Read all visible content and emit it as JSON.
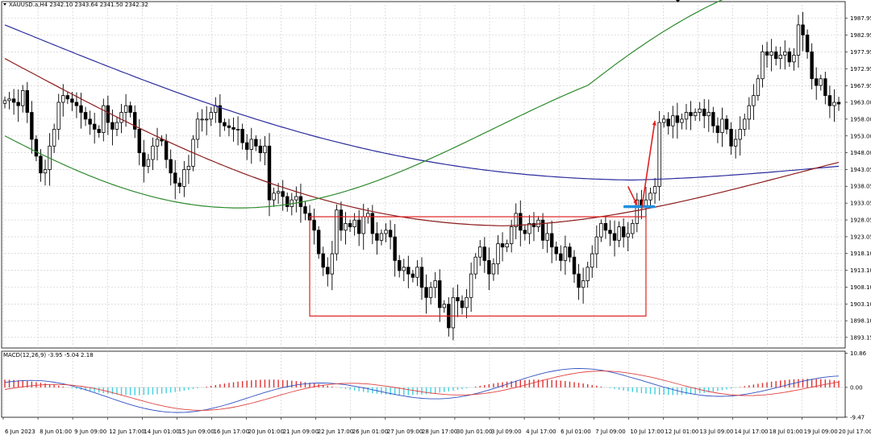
{
  "header": {
    "main_label": "XAUUSD.a,H4  2342.10 2343.64 2341.50 2342.32",
    "macd_label": "MACD(12,26,9) -3.95 -5.04 2.18"
  },
  "colors": {
    "candle": "#000000",
    "grid": "#c8c8c8",
    "ma_blue": "#2b2b9e",
    "ma_darkred": "#8b1a1a",
    "ma_green": "#2e8b2e",
    "range_box": "#e02020",
    "breakout_line": "#1e8fe0",
    "arrow": "#e02020",
    "hist_pos": "#e03030",
    "hist_neg": "#40d0e0",
    "macd_line": "#3050c0",
    "signal_line": "#e04040"
  },
  "chart_data": [
    {
      "type": "candlestick",
      "symbol": "XAUUSD.a",
      "timeframe": "H4",
      "ylim": [
        1890.0,
        1991.0
      ],
      "y_ticks": [
        "1987.95",
        "1982.95",
        "1977.95",
        "1972.95",
        "1967.95",
        "1963.00",
        "1958.00",
        "1953.00",
        "1948.00",
        "1943.05",
        "1938.05",
        "1933.05",
        "1928.05",
        "1923.05",
        "1918.10",
        "1913.10",
        "1908.10",
        "1903.10",
        "1898.10",
        "1893.15"
      ],
      "x_ticks": [
        "6 Jun 2023",
        "8 Jun 01:00",
        "9 Jun 09:00",
        "12 Jun 17:00",
        "14 Jun 01:00",
        "15 Jun 09:00",
        "16 Jun 17:00",
        "20 Jun 01:00",
        "21 Jun 09:00",
        "22 Jun 17:00",
        "26 Jun 01:00",
        "27 Jun 09:00",
        "28 Jun 17:00",
        "30 Jun 01:00",
        "3 Jul 09:00",
        "4 Jul 17:00",
        "6 Jul 01:00",
        "7 Jul 09:00",
        "10 Jul 17:00",
        "12 Jul 01:00",
        "13 Jul 09:00",
        "14 Jul 17:00",
        "18 Jul 01:00",
        "19 Jul 09:00",
        "20 Jul 17:00"
      ],
      "closes": [
        1963.5,
        1964.0,
        1963.0,
        1962.0,
        1966.5,
        1960.0,
        1952.0,
        1947.0,
        1942.0,
        1943.0,
        1950.0,
        1955.0,
        1963.0,
        1965.0,
        1964.0,
        1963.0,
        1962.0,
        1960.0,
        1958.0,
        1956.5,
        1955.0,
        1954.0,
        1962.0,
        1957.0,
        1955.0,
        1957.0,
        1960.0,
        1962.0,
        1960.0,
        1955.0,
        1948.0,
        1944.0,
        1946.0,
        1950.0,
        1952.0,
        1951.5,
        1946.0,
        1942.0,
        1939.0,
        1938.0,
        1943.0,
        1944.0,
        1952.0,
        1958.0,
        1958.0,
        1958.0,
        1960.0,
        1962.0,
        1957.0,
        1956.0,
        1955.5,
        1955.0,
        1955.0,
        1951.0,
        1949.0,
        1952.0,
        1950.0,
        1948.0,
        1950.0,
        1934.0,
        1936.0,
        1936.5,
        1935.0,
        1932.0,
        1934.0,
        1935.0,
        1932.0,
        1930.0,
        1928.0,
        1925.0,
        1918.0,
        1914.0,
        1912.0,
        1918.0,
        1931.0,
        1925.0,
        1927.0,
        1926.0,
        1928.0,
        1924.0,
        1929.0,
        1930.0,
        1924.0,
        1922.0,
        1924.0,
        1925.0,
        1923.0,
        1916.0,
        1913.0,
        1914.0,
        1912.0,
        1911.0,
        1914.0,
        1908.0,
        1905.0,
        1908.0,
        1910.0,
        1902.0,
        1903.0,
        1896.0,
        1905.0,
        1904.0,
        1902.0,
        1905.0,
        1912.0,
        1917.0,
        1920.0,
        1916.0,
        1912.0,
        1915.0,
        1921.0,
        1920.0,
        1921.0,
        1926.0,
        1930.0,
        1925.0,
        1924.0,
        1927.0,
        1926.0,
        1928.0,
        1922.0,
        1924.0,
        1920.0,
        1918.0,
        1916.0,
        1920.0,
        1917.0,
        1912.0,
        1908.0,
        1910.0,
        1914.0,
        1918.0,
        1923.0,
        1927.0,
        1925.0,
        1924.0,
        1922.0,
        1926.0,
        1923.0,
        1924.0,
        1927.0,
        1934.0,
        1932.0,
        1934.0,
        1936.0,
        1938.0,
        1957.0,
        1958.0,
        1956.0,
        1959.0,
        1957.0,
        1958.0,
        1960.0,
        1959.0,
        1960.0,
        1961.0,
        1959.0,
        1960.0,
        1956.0,
        1954.0,
        1958.0,
        1955.0,
        1950.0,
        1952.0,
        1955.0,
        1958.0,
        1962.0,
        1965.0,
        1970.0,
        1978.0,
        1977.0,
        1978.0,
        1976.0,
        1977.0,
        1978.0,
        1975.0,
        1977.0,
        1986.0,
        1983.0,
        1978.0,
        1970.0,
        1968.0,
        1970.0,
        1965.0,
        1962.0,
        1963.0,
        1962.5
      ],
      "moving_averages": [
        {
          "color": "blue",
          "start": 1986.0,
          "end": 1941.5
        },
        {
          "color": "darkred",
          "start": 1976.0,
          "end": 1936.0
        },
        {
          "color": "green",
          "start": 1958.0,
          "end": 1954.0
        }
      ],
      "annotations": [
        {
          "type": "rectangle",
          "y_top": 1929.0,
          "y_bottom": 1899.5
        },
        {
          "type": "horizontal_segment",
          "y": 1932.0
        },
        {
          "type": "arrows",
          "count": 2
        }
      ]
    },
    {
      "type": "macd",
      "params": "MACD(12,26,9)",
      "values": {
        "macd": -3.95,
        "signal": -5.04,
        "histogram": 2.18
      },
      "ylim": [
        -9.5,
        11.5
      ],
      "y_ticks": [
        "10.86",
        "0.00",
        "-9.47"
      ]
    }
  ]
}
